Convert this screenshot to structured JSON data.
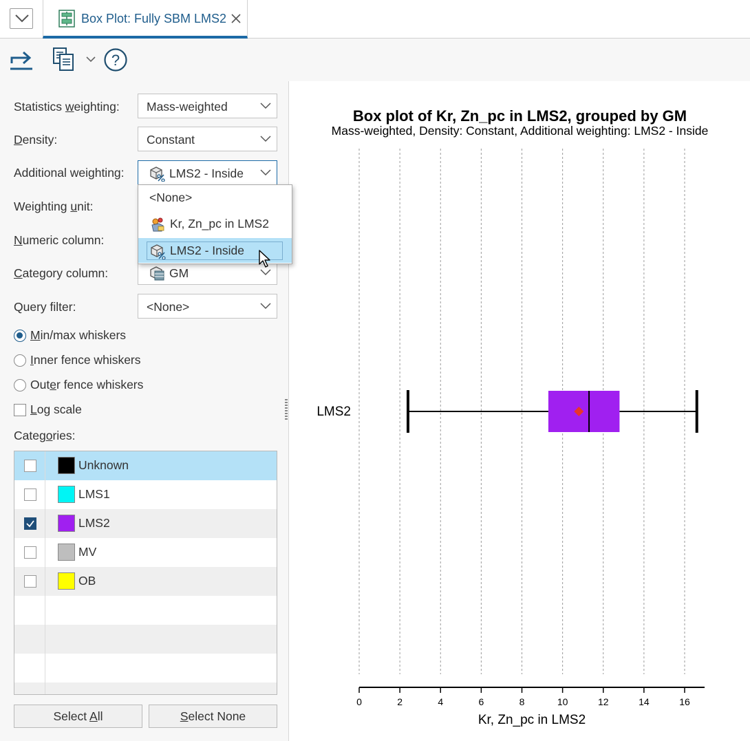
{
  "tab": {
    "title": "Box Plot: Fully SBM LMS2"
  },
  "form": {
    "statistics_weighting": {
      "label_pre": "Statistics ",
      "label_u": "w",
      "label_post": "eighting:",
      "value": "Mass-weighted"
    },
    "density": {
      "label_u": "D",
      "label_post": "ensity:",
      "value": "Constant"
    },
    "additional_weighting": {
      "label": "Additional weighting:",
      "value": "LMS2 - Inside"
    },
    "weighting_unit": {
      "label_pre": "Weighting ",
      "label_u": "u",
      "label_post": "nit:"
    },
    "numeric_column": {
      "label_u": "N",
      "label_post": "umeric column:"
    },
    "category_column": {
      "label_u": "C",
      "label_post": "ategory column:",
      "value": "GM"
    },
    "query_filter": {
      "label": "Query filter:",
      "value": "<None>"
    }
  },
  "whiskers": {
    "minmax": {
      "label_u": "M",
      "label_post": "in/max whiskers",
      "selected": true
    },
    "inner": {
      "label_u": "I",
      "label_post": "nner fence whiskers",
      "selected": false
    },
    "outer": {
      "label_pre": "Out",
      "label_u": "e",
      "label_post": "r fence whiskers",
      "selected": false
    }
  },
  "log_scale": {
    "label_u": "L",
    "label_post": "og scale",
    "checked": false
  },
  "categories": {
    "label_pre": "Categ",
    "label_u": "o",
    "label_post": "ries:",
    "items": [
      {
        "name": "Unknown",
        "color": "#000000",
        "checked": false
      },
      {
        "name": "LMS1",
        "color": "#00f5f5",
        "checked": false
      },
      {
        "name": "LMS2",
        "color": "#a020f0",
        "checked": true
      },
      {
        "name": "MV",
        "color": "#bebebe",
        "checked": false
      },
      {
        "name": "OB",
        "color": "#ffff00",
        "checked": false
      }
    ]
  },
  "buttons": {
    "select_all": {
      "pre": "Select ",
      "u": "A",
      "post": "ll"
    },
    "select_none": {
      "u": "S",
      "post": "elect None"
    }
  },
  "dropdown": {
    "options": [
      {
        "label": "<None>",
        "icon": "none"
      },
      {
        "label": "Kr, Zn_pc in LMS2",
        "icon": "evaluation-icon"
      },
      {
        "label": "LMS2 - Inside",
        "icon": "weighting-icon",
        "highlighted": true
      }
    ]
  },
  "colors": {
    "accent": "#1c6aa6",
    "selection": "#b4e1f7",
    "box_fill": "#a020f0",
    "mean_marker": "#e8352c"
  },
  "chart_data": {
    "type": "box",
    "title": "Box plot of Kr, Zn_pc in LMS2, grouped by GM",
    "subtitle": "Mass-weighted, Density: Constant, Additional weighting: LMS2 - Inside",
    "xlabel": "Kr, Zn_pc in LMS2",
    "xlim": [
      0,
      17
    ],
    "xticks": [
      0,
      2,
      4,
      6,
      8,
      10,
      12,
      14,
      16
    ],
    "grid": "vertical dashed",
    "series": [
      {
        "name": "LMS2",
        "min": 2.4,
        "q1": 9.3,
        "median": 11.3,
        "mean": 10.8,
        "q3": 12.8,
        "max": 16.6
      }
    ]
  }
}
